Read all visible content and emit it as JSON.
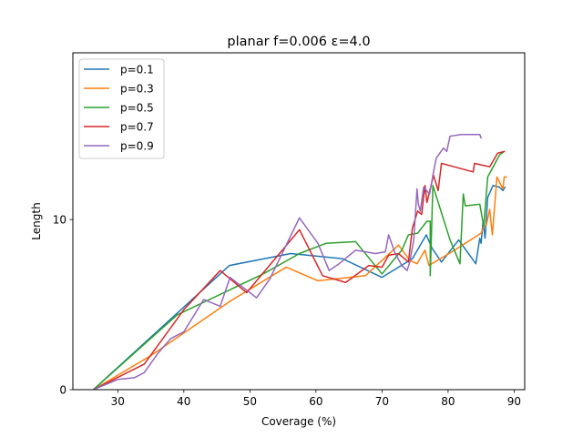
{
  "chart_data": {
    "type": "line",
    "title": "planar f=0.006 ε=4.0",
    "xlabel": "Coverage (%)",
    "ylabel": "Length",
    "xlim": [
      23.2,
      91.6
    ],
    "ylim": [
      0,
      19.8
    ],
    "xticks": [
      30,
      40,
      50,
      60,
      70,
      80,
      90
    ],
    "yticks": [
      0,
      10
    ],
    "legend_position": "top-left",
    "grid": false,
    "series": [
      {
        "name": "p=0.1",
        "color": "#1f77b4",
        "points": [
          [
            26.3,
            0.0
          ],
          [
            46.9,
            7.3
          ],
          [
            56.2,
            8.0
          ],
          [
            64.0,
            7.7
          ],
          [
            70.0,
            6.6
          ],
          [
            74.6,
            7.7
          ],
          [
            76.7,
            9.1
          ],
          [
            77.6,
            8.3
          ],
          [
            79.0,
            7.5
          ],
          [
            81.6,
            8.8
          ],
          [
            84.2,
            7.4
          ],
          [
            84.8,
            8.9
          ],
          [
            85.0,
            8.6
          ],
          [
            85.3,
            9.9
          ],
          [
            85.6,
            8.9
          ],
          [
            86.0,
            11.3
          ],
          [
            86.8,
            12.0
          ],
          [
            87.8,
            11.9
          ],
          [
            88.3,
            11.7
          ],
          [
            88.6,
            11.9
          ]
        ]
      },
      {
        "name": "p=0.3",
        "color": "#ff7f0e",
        "points": [
          [
            26.3,
            0.0
          ],
          [
            35.0,
            2.0
          ],
          [
            47.0,
            5.2
          ],
          [
            55.5,
            7.2
          ],
          [
            60.3,
            6.4
          ],
          [
            67.5,
            6.7
          ],
          [
            72.5,
            8.5
          ],
          [
            74.2,
            7.6
          ],
          [
            75.3,
            7.4
          ],
          [
            76.5,
            8.2
          ],
          [
            77.1,
            7.3
          ],
          [
            81.0,
            8.2
          ],
          [
            85.0,
            9.2
          ],
          [
            85.4,
            9.6
          ],
          [
            85.8,
            9.7
          ],
          [
            86.3,
            10.6
          ],
          [
            86.7,
            9.1
          ],
          [
            87.4,
            12.5
          ],
          [
            88.3,
            11.8
          ],
          [
            88.5,
            12.5
          ],
          [
            88.8,
            12.5
          ]
        ]
      },
      {
        "name": "p=0.5",
        "color": "#2ca02c",
        "points": [
          [
            26.3,
            0.0
          ],
          [
            39.0,
            4.4
          ],
          [
            52.0,
            6.8
          ],
          [
            57.5,
            8.0
          ],
          [
            61.5,
            8.6
          ],
          [
            66.0,
            8.7
          ],
          [
            70.0,
            6.8
          ],
          [
            73.0,
            8.2
          ],
          [
            74.0,
            9.1
          ],
          [
            75.4,
            9.2
          ],
          [
            76.8,
            9.9
          ],
          [
            77.3,
            9.9
          ],
          [
            77.3,
            6.7
          ],
          [
            77.7,
            12.0
          ],
          [
            80.3,
            8.8
          ],
          [
            81.8,
            7.4
          ],
          [
            82.3,
            11.5
          ],
          [
            82.6,
            10.8
          ],
          [
            84.8,
            10.9
          ],
          [
            85.4,
            9.6
          ],
          [
            86.0,
            12.5
          ],
          [
            87.8,
            13.8
          ],
          [
            88.5,
            14.0
          ]
        ]
      },
      {
        "name": "p=0.7",
        "color": "#d62728",
        "points": [
          [
            26.3,
            0.0
          ],
          [
            34.0,
            1.5
          ],
          [
            40.0,
            4.7
          ],
          [
            45.5,
            7.0
          ],
          [
            49.5,
            5.7
          ],
          [
            57.5,
            9.4
          ],
          [
            61.0,
            6.7
          ],
          [
            64.5,
            6.3
          ],
          [
            68.0,
            7.3
          ],
          [
            70.0,
            7.2
          ],
          [
            71.0,
            7.9
          ],
          [
            72.5,
            8.0
          ],
          [
            74.0,
            7.5
          ],
          [
            74.6,
            9.5
          ],
          [
            75.4,
            10.5
          ],
          [
            76.0,
            10.3
          ],
          [
            76.5,
            12.0
          ],
          [
            76.8,
            11.0
          ],
          [
            77.8,
            12.6
          ],
          [
            78.5,
            11.7
          ],
          [
            79.0,
            13.3
          ],
          [
            83.8,
            12.8
          ],
          [
            84.0,
            13.3
          ],
          [
            86.3,
            13.1
          ],
          [
            87.5,
            13.9
          ],
          [
            88.5,
            14.0
          ]
        ]
      },
      {
        "name": "p=0.9",
        "color": "#9467bd",
        "points": [
          [
            26.3,
            0.0
          ],
          [
            30.0,
            0.6
          ],
          [
            32.5,
            0.7
          ],
          [
            34.0,
            1.0
          ],
          [
            36.0,
            2.1
          ],
          [
            38.0,
            3.0
          ],
          [
            40.0,
            3.4
          ],
          [
            43.0,
            5.3
          ],
          [
            45.5,
            4.9
          ],
          [
            47.0,
            6.6
          ],
          [
            51.0,
            5.4
          ],
          [
            53.0,
            6.5
          ],
          [
            57.5,
            10.1
          ],
          [
            60.3,
            8.6
          ],
          [
            62.0,
            7.0
          ],
          [
            63.5,
            7.4
          ],
          [
            66.0,
            8.2
          ],
          [
            67.5,
            8.1
          ],
          [
            69.0,
            8.0
          ],
          [
            70.5,
            8.1
          ],
          [
            71.0,
            9.1
          ],
          [
            72.0,
            8.0
          ],
          [
            73.0,
            7.3
          ],
          [
            73.8,
            7.0
          ],
          [
            74.2,
            7.5
          ],
          [
            74.8,
            8.8
          ],
          [
            75.3,
            11.8
          ],
          [
            75.5,
            10.9
          ],
          [
            75.8,
            10.5
          ],
          [
            76.3,
            11.9
          ],
          [
            77.2,
            11.5
          ],
          [
            77.8,
            12.8
          ],
          [
            78.2,
            13.6
          ],
          [
            79.3,
            14.2
          ],
          [
            79.8,
            14.0
          ],
          [
            80.3,
            14.9
          ],
          [
            82.0,
            15.0
          ],
          [
            84.8,
            15.0
          ],
          [
            85.0,
            14.8
          ]
        ]
      }
    ]
  }
}
